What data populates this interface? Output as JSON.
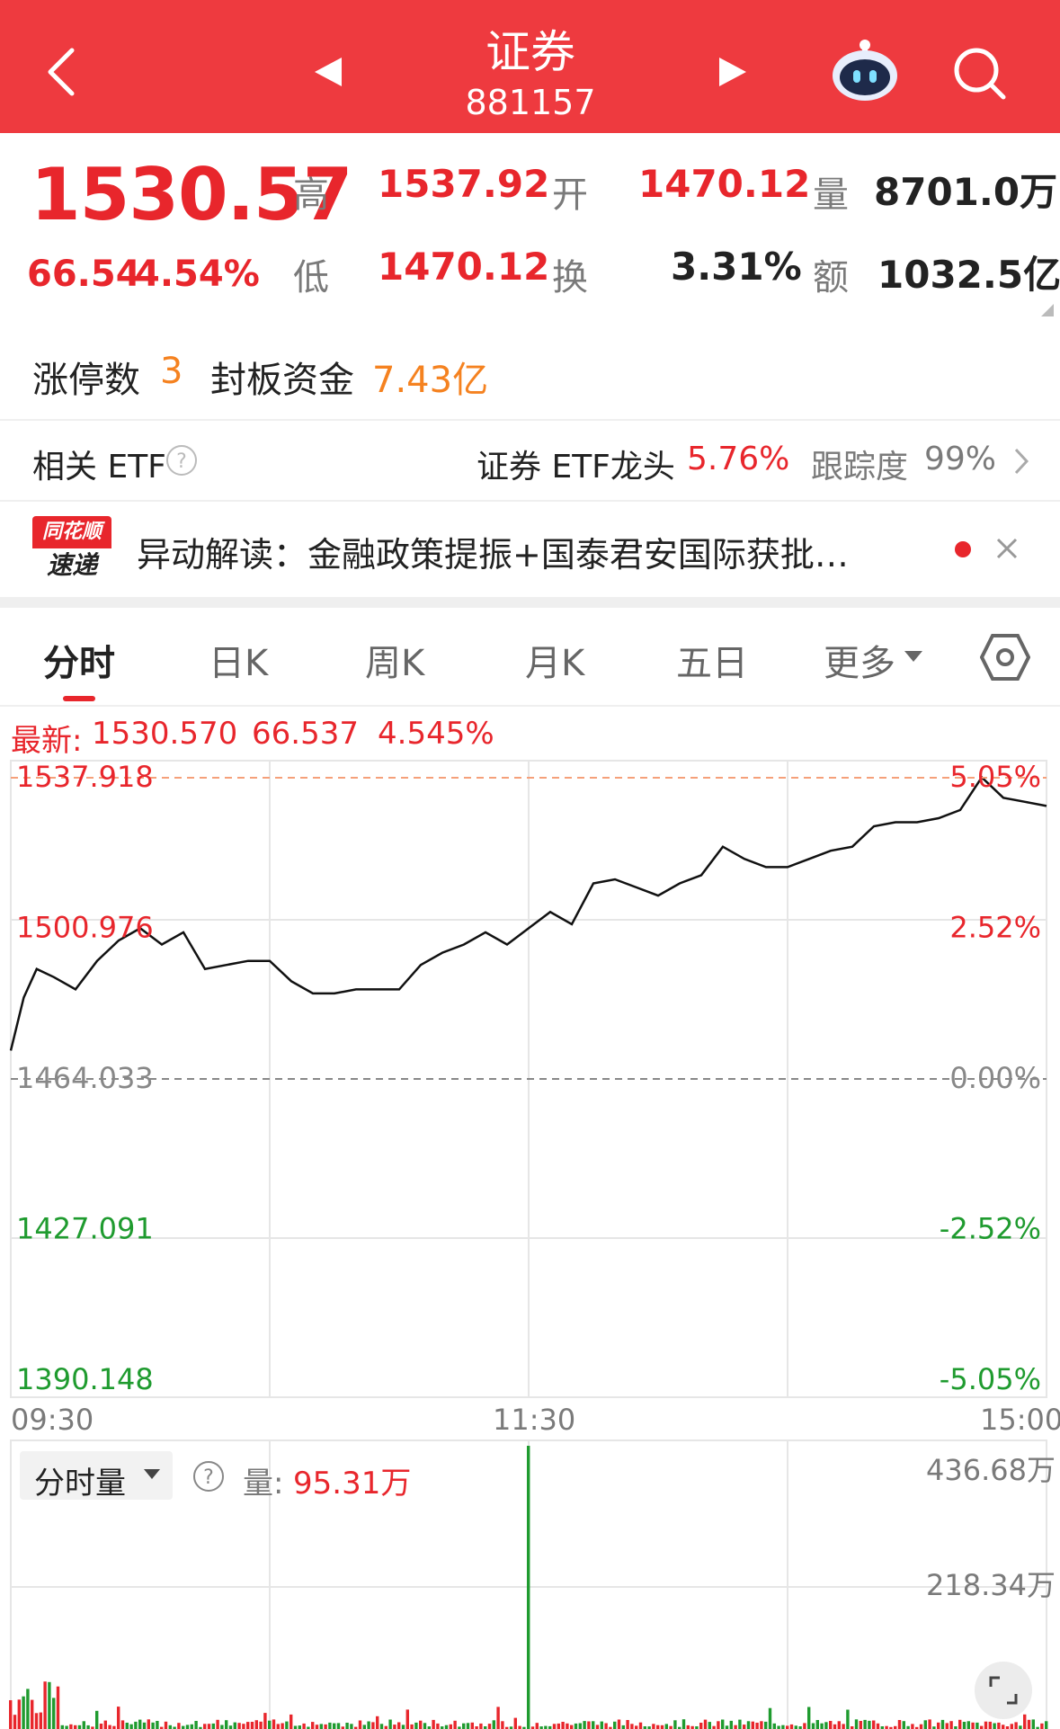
{
  "header": {
    "title": "证券",
    "code": "881157"
  },
  "quote": {
    "price": "1530.57",
    "change": "66.54",
    "change_pct": "4.54%",
    "high_label": "高",
    "high": "1537.92",
    "open_label": "开",
    "open": "1470.12",
    "volume_label": "量",
    "volume": "8701.0万",
    "low_label": "低",
    "low": "1470.12",
    "turnover_label": "换",
    "turnover": "3.31%",
    "amount_label": "额",
    "amount": "1032.5亿"
  },
  "limit_up": {
    "count_label": "涨停数",
    "count": "3",
    "seal_label": "封板资金",
    "seal": "7.43亿"
  },
  "etf": {
    "label": "相关 ETF",
    "name": "证券 ETF龙头",
    "pct": "5.76%",
    "tracking_label": "跟踪度",
    "tracking": "99%"
  },
  "news": {
    "badge_top": "同花顺",
    "badge_bottom": "速递",
    "text": "异动解读：金融政策提振+国泰君安国际获批…"
  },
  "tabs": [
    "分时",
    "日K",
    "周K",
    "月K",
    "五日",
    "更多"
  ],
  "chart_data": {
    "type": "line",
    "title": "",
    "latest_label": "最新:",
    "latest_price": "1530.570",
    "latest_change": "66.537",
    "latest_pct": "4.545%",
    "y_left_ticks": [
      "1537.918",
      "1500.976",
      "1464.033",
      "1427.091",
      "1390.148"
    ],
    "y_right_ticks": [
      "5.05%",
      "2.52%",
      "0.00%",
      "-2.52%",
      "-5.05%"
    ],
    "x_ticks": [
      "09:30",
      "11:30",
      "15:00"
    ],
    "ylim": [
      1390.148,
      1537.918
    ],
    "prev_close": 1464.033,
    "x": [
      0,
      3,
      6,
      10,
      15,
      20,
      25,
      30,
      35,
      40,
      45,
      50,
      55,
      60,
      65,
      70,
      75,
      80,
      85,
      90,
      95,
      100,
      105,
      110,
      115,
      120,
      125,
      130,
      135,
      140,
      145,
      150,
      155,
      160,
      165,
      170,
      175,
      180,
      185,
      190,
      195,
      200,
      205,
      210,
      215,
      220,
      225,
      230,
      235,
      240
    ],
    "values": [
      1471,
      1484,
      1491,
      1489,
      1486,
      1493,
      1498,
      1501,
      1497,
      1500,
      1491,
      1492,
      1493,
      1493,
      1488,
      1485,
      1485,
      1486,
      1486,
      1486,
      1492,
      1495,
      1497,
      1500,
      1497,
      1501,
      1505,
      1502,
      1512,
      1513,
      1511,
      1509,
      1512,
      1514,
      1521,
      1518,
      1516,
      1516,
      1518,
      1520,
      1521,
      1526,
      1527,
      1527,
      1528,
      1530,
      1538,
      1533,
      1532,
      1531
    ],
    "volume_label": "分时量",
    "volume_value_label": "量:",
    "volume_value": "95.31万",
    "volume_ticks": [
      "436.68万",
      "218.34万"
    ],
    "volume_max": 436.68,
    "volume_spike_index": 120,
    "volume_spike_value": 436.68
  },
  "colors": {
    "brand": "#ee3a3f",
    "up": "#e8262c",
    "down": "#1f9b2f",
    "accent": "#f58220"
  }
}
